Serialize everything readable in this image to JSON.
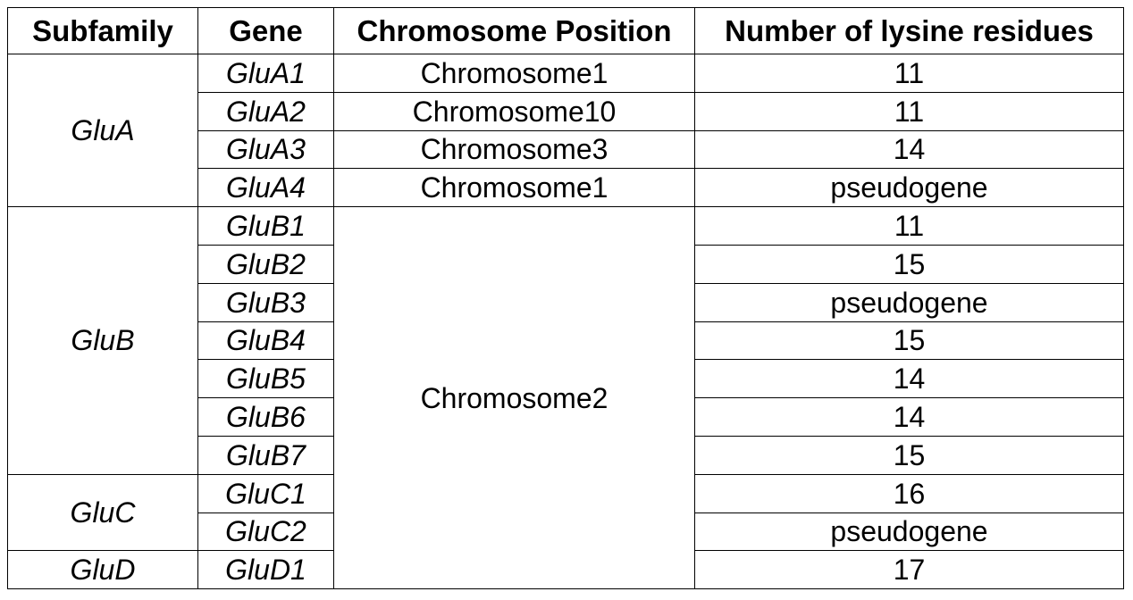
{
  "headers": {
    "subfamily": "Subfamily",
    "gene": "Gene",
    "position": "Chromosome Position",
    "lysine": "Number of lysine residues"
  },
  "subfamilies": [
    "GluA",
    "GluB",
    "GluC",
    "GluD"
  ],
  "genes": [
    {
      "name": "GluA1",
      "position": "Chromosome1",
      "lysine": "11"
    },
    {
      "name": "GluA2",
      "position": "Chromosome10",
      "lysine": "11"
    },
    {
      "name": "GluA3",
      "position": "Chromosome3",
      "lysine": "14"
    },
    {
      "name": "GluA4",
      "position": "Chromosome1",
      "lysine": "pseudogene"
    },
    {
      "name": "GluB1",
      "lysine": "11"
    },
    {
      "name": "GluB2",
      "lysine": "15"
    },
    {
      "name": "GluB3",
      "lysine": "pseudogene"
    },
    {
      "name": "GluB4",
      "lysine": "15"
    },
    {
      "name": "GluB5",
      "lysine": "14"
    },
    {
      "name": "GluB6",
      "lysine": "14"
    },
    {
      "name": "GluB7",
      "lysine": "15"
    },
    {
      "name": "GluC1",
      "lysine": "16"
    },
    {
      "name": "GluC2",
      "lysine": "pseudogene"
    },
    {
      "name": "GluD1",
      "lysine": "17"
    }
  ],
  "shared_position": "Chromosome2"
}
